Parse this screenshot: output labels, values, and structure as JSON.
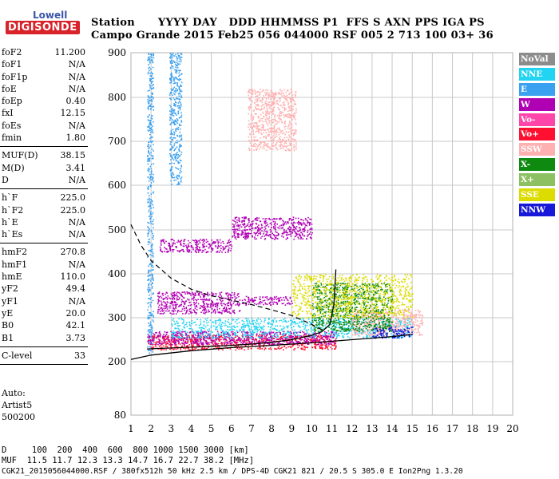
{
  "logo": {
    "top": "Lowell",
    "bottom": "DIGISONDE"
  },
  "header": {
    "row1": "Station      YYYY DAY   DDD HHMMSS P1  FFS S AXN PPS IGA PS",
    "row2": "Campo Grande 2015 Feb25 056 044000 RSF 005 2 713 100 03+ 36"
  },
  "params": [
    {
      "name": "foF2",
      "value": "11.200"
    },
    {
      "name": "foF1",
      "value": "N/A"
    },
    {
      "name": "foF1p",
      "value": "N/A"
    },
    {
      "name": "foE",
      "value": "N/A"
    },
    {
      "name": "foEp",
      "value": "0.40"
    },
    {
      "name": "fxI",
      "value": "12.15"
    },
    {
      "name": "foEs",
      "value": "N/A"
    },
    {
      "name": "fmin",
      "value": "1.80"
    },
    {
      "sep": true
    },
    {
      "name": "MUF(D)",
      "value": "38.15"
    },
    {
      "name": "M(D)",
      "value": "3.41"
    },
    {
      "name": "D",
      "value": "N/A"
    },
    {
      "sep": true
    },
    {
      "name": "h`F",
      "value": "225.0"
    },
    {
      "name": "h`F2",
      "value": "225.0"
    },
    {
      "name": "h`E",
      "value": "N/A"
    },
    {
      "name": "h`Es",
      "value": "N/A"
    },
    {
      "sep": true
    },
    {
      "name": "hmF2",
      "value": "270.8"
    },
    {
      "name": "hmF1",
      "value": "N/A"
    },
    {
      "name": "hmE",
      "value": "110.0"
    },
    {
      "name": "yF2",
      "value": "49.4"
    },
    {
      "name": "yF1",
      "value": "N/A"
    },
    {
      "name": "yE",
      "value": "20.0"
    },
    {
      "name": "B0",
      "value": "42.1"
    },
    {
      "name": "B1",
      "value": "3.73"
    },
    {
      "sep": true
    },
    {
      "name": "C-level",
      "value": "33"
    },
    {
      "sep": true
    }
  ],
  "auto": [
    "Auto:",
    "Artist5",
    "500200"
  ],
  "legend": [
    {
      "label": "NoVal",
      "color": "#8c8c8c"
    },
    {
      "label": "NNE",
      "color": "#22d3f2"
    },
    {
      "label": "E",
      "color": "#3aa0f0"
    },
    {
      "label": "W",
      "color": "#b000b4"
    },
    {
      "label": "Vo-",
      "color": "#ff44aa"
    },
    {
      "label": "Vo+",
      "color": "#ff1030"
    },
    {
      "label": "SSW",
      "color": "#ffb0b0"
    },
    {
      "label": "X-",
      "color": "#0e8a10"
    },
    {
      "label": "X+",
      "color": "#8cc060"
    },
    {
      "label": "SSE",
      "color": "#dcdc00"
    },
    {
      "label": "NNW",
      "color": "#1818d8"
    }
  ],
  "footer": {
    "line1": "D     100  200  400  600  800 1000 1500 3000 [km]",
    "line2": "MUF  11.5 11.7 12.3 13.3 14.7 16.7 22.7 38.2 [MHz]",
    "line3": "CGK21_2015056044000.RSF / 380fx512h 50 kHz 2.5 km / DPS-4D CGK21 821 / 20.5 S 305.0 E Ion2Png 1.3.20"
  },
  "chart_data": {
    "type": "scatter",
    "xlim": [
      1,
      20
    ],
    "ylim": [
      80,
      900
    ],
    "xticks": [
      1,
      2,
      3,
      4,
      5,
      6,
      7,
      8,
      9,
      10,
      11,
      12,
      13,
      14,
      15,
      16,
      17,
      18,
      19,
      20
    ],
    "yticks": [
      80,
      200,
      300,
      400,
      500,
      600,
      700,
      800,
      900
    ],
    "grid": true,
    "legend_placement": "right",
    "traces": {
      "profile_solid": [
        [
          1.8,
          229
        ],
        [
          3,
          231
        ],
        [
          4,
          233
        ],
        [
          5,
          235
        ],
        [
          6,
          237
        ],
        [
          7,
          240
        ],
        [
          8,
          244
        ],
        [
          9,
          250
        ],
        [
          10,
          260
        ],
        [
          10.5,
          268
        ],
        [
          10.9,
          285
        ],
        [
          11.1,
          330
        ],
        [
          11.2,
          410
        ]
      ],
      "lower_solid": [
        [
          1.0,
          205
        ],
        [
          2,
          215
        ],
        [
          4,
          225
        ],
        [
          6,
          232
        ],
        [
          8,
          237
        ],
        [
          10,
          243
        ],
        [
          12,
          250
        ],
        [
          14,
          257
        ],
        [
          15,
          262
        ]
      ],
      "dashed_model": [
        [
          1.0,
          512
        ],
        [
          1.5,
          465
        ],
        [
          2,
          430
        ],
        [
          3,
          390
        ],
        [
          4,
          365
        ],
        [
          5,
          350
        ],
        [
          6,
          340
        ],
        [
          7,
          330
        ],
        [
          8,
          318
        ],
        [
          9,
          305
        ],
        [
          10,
          285
        ],
        [
          10.6,
          270
        ]
      ]
    },
    "clusters": [
      {
        "name": "E",
        "x": [
          1.8,
          2.1
        ],
        "y": [
          220,
          900
        ]
      },
      {
        "name": "E",
        "x": [
          2.9,
          3.5
        ],
        "y": [
          600,
          900
        ]
      },
      {
        "name": "W",
        "x": [
          2.4,
          6.0
        ],
        "y": [
          450,
          480
        ]
      },
      {
        "name": "W",
        "x": [
          6,
          10
        ],
        "y": [
          480,
          530
        ]
      },
      {
        "name": "W",
        "x": [
          2.3,
          6.4
        ],
        "y": [
          310,
          360
        ]
      },
      {
        "name": "W",
        "x": [
          6.5,
          9
        ],
        "y": [
          330,
          350
        ]
      },
      {
        "name": "Vo+",
        "x": [
          1.8,
          11.2
        ],
        "y": [
          228,
          262
        ]
      },
      {
        "name": "W",
        "x": [
          1.8,
          11.2
        ],
        "y": [
          240,
          270
        ]
      },
      {
        "name": "NNE",
        "x": [
          3,
          15
        ],
        "y": [
          255,
          300
        ]
      },
      {
        "name": "SSW",
        "x": [
          12,
          15.5
        ],
        "y": [
          260,
          320
        ]
      },
      {
        "name": "X-",
        "x": [
          10,
          14
        ],
        "y": [
          270,
          380
        ]
      },
      {
        "name": "SSE",
        "x": [
          9,
          15
        ],
        "y": [
          300,
          400
        ]
      },
      {
        "name": "SSW",
        "x": [
          6.8,
          9.2
        ],
        "y": [
          680,
          820
        ]
      },
      {
        "name": "NNW",
        "x": [
          13,
          15
        ],
        "y": [
          255,
          280
        ]
      }
    ]
  }
}
